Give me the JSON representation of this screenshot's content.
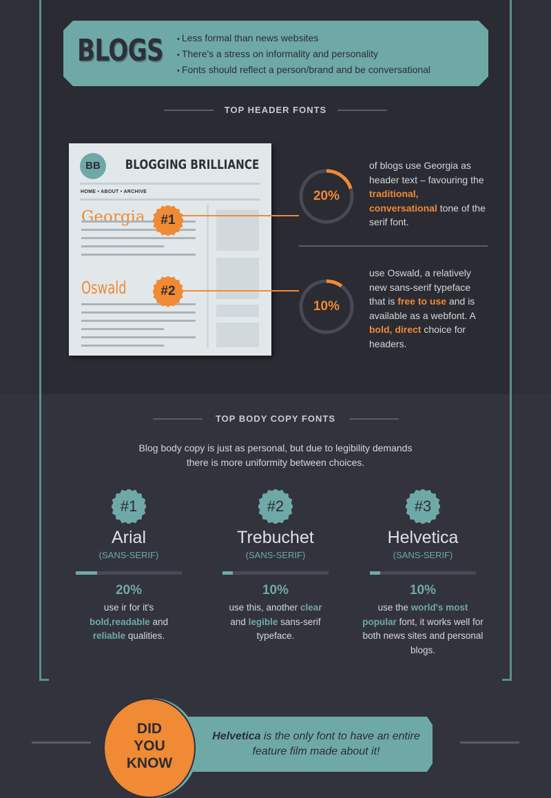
{
  "blogs": {
    "title": "BLOGS",
    "points": [
      "Less formal than news websites",
      "There's a stress on informality and personality",
      "Fonts should reflect a person/brand and be conversational"
    ]
  },
  "header_fonts": {
    "heading": "TOP HEADER FONTS",
    "mockup": {
      "logo": "BB",
      "site_title": "BLOGGING BRILLIANCE",
      "nav": "HOME  •  ABOUT  •  ARCHIVE",
      "font1": "Georgia",
      "rank1": "#1",
      "font2": "Oswald",
      "rank2": "#2"
    },
    "stats": [
      {
        "percent": "20%",
        "value": 20,
        "text_a": "of blogs use Georgia as header text – favouring the ",
        "highlight": "traditional, conversational",
        "text_b": " tone of the serif font."
      },
      {
        "percent": "10%",
        "value": 10,
        "text_a": "use Oswald, a relatively new sans-serif typeface that is ",
        "highlight": "free to use",
        "text_b": " and is available as a webfont. A ",
        "highlight2": "bold, direct",
        "text_c": " choice for headers."
      }
    ]
  },
  "body_fonts": {
    "heading": "TOP BODY COPY FONTS",
    "intro": "Blog body copy is just as personal, but due to legibility demands there is more uniformity between choices.",
    "fonts": [
      {
        "rank": "#1",
        "name": "Arial",
        "type": "(SANS-SERIF)",
        "percent": "20%",
        "value": 20,
        "parts": [
          "use ir for it's ",
          "bold",
          ",",
          "readable",
          " and ",
          "reliable",
          " qualities."
        ]
      },
      {
        "rank": "#2",
        "name": "Trebuchet",
        "type": "(SANS-SERIF)",
        "percent": "10%",
        "value": 10,
        "parts": [
          "use this, another ",
          "clear",
          " and ",
          "legible",
          " sans-serif typeface."
        ]
      },
      {
        "rank": "#3",
        "name": "Helvetica",
        "type": "(SANS-SERIF)",
        "percent": "10%",
        "value": 10,
        "parts": [
          "use the ",
          "world's most popular",
          " font, it works well for both news sites and personal blogs."
        ]
      }
    ]
  },
  "did_you_know": {
    "badge": [
      "DID",
      "YOU",
      "KNOW"
    ],
    "em": "Helvetica",
    "text": " is the only font to have an entire feature film made about it!"
  },
  "colors": {
    "teal": "#6fa9a7",
    "orange": "#f08a34",
    "dark": "#2a2b33"
  }
}
